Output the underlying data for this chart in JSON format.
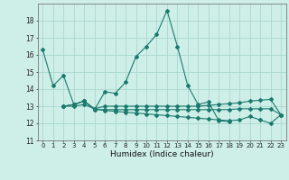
{
  "xlabel": "Humidex (Indice chaleur)",
  "xlim": [
    -0.5,
    23.5
  ],
  "ylim": [
    11,
    19
  ],
  "yticks": [
    11,
    12,
    13,
    14,
    15,
    16,
    17,
    18
  ],
  "xticks": [
    0,
    1,
    2,
    3,
    4,
    5,
    6,
    7,
    8,
    9,
    10,
    11,
    12,
    13,
    14,
    15,
    16,
    17,
    18,
    19,
    20,
    21,
    22,
    23
  ],
  "background_color": "#ceeee8",
  "grid_color": "#aad8d0",
  "line_color": "#1a7a6e",
  "lines": [
    [
      16.3,
      14.2,
      14.8,
      13.1,
      13.3,
      12.8,
      13.85,
      13.75,
      14.4,
      15.9,
      16.5,
      17.2,
      18.6,
      16.5,
      14.2,
      13.1,
      13.25,
      12.15,
      12.1,
      null,
      null,
      null,
      null,
      null
    ],
    [
      null,
      null,
      13.0,
      13.0,
      13.1,
      12.85,
      12.75,
      12.7,
      12.65,
      12.6,
      12.55,
      12.5,
      12.45,
      12.4,
      12.35,
      12.3,
      12.25,
      12.2,
      12.15,
      12.2,
      12.4,
      12.2,
      12.0,
      12.5
    ],
    [
      null,
      null,
      13.0,
      13.1,
      13.3,
      12.8,
      12.8,
      12.8,
      12.8,
      12.8,
      12.8,
      12.8,
      12.8,
      12.8,
      12.8,
      12.8,
      12.8,
      12.8,
      12.8,
      12.85,
      12.85,
      12.85,
      12.85,
      12.5
    ],
    [
      null,
      null,
      13.0,
      13.1,
      13.3,
      12.85,
      13.0,
      13.0,
      13.0,
      13.0,
      13.0,
      13.0,
      13.0,
      13.0,
      13.0,
      13.0,
      13.05,
      13.1,
      13.15,
      13.2,
      13.3,
      13.35,
      13.4,
      12.5
    ]
  ]
}
